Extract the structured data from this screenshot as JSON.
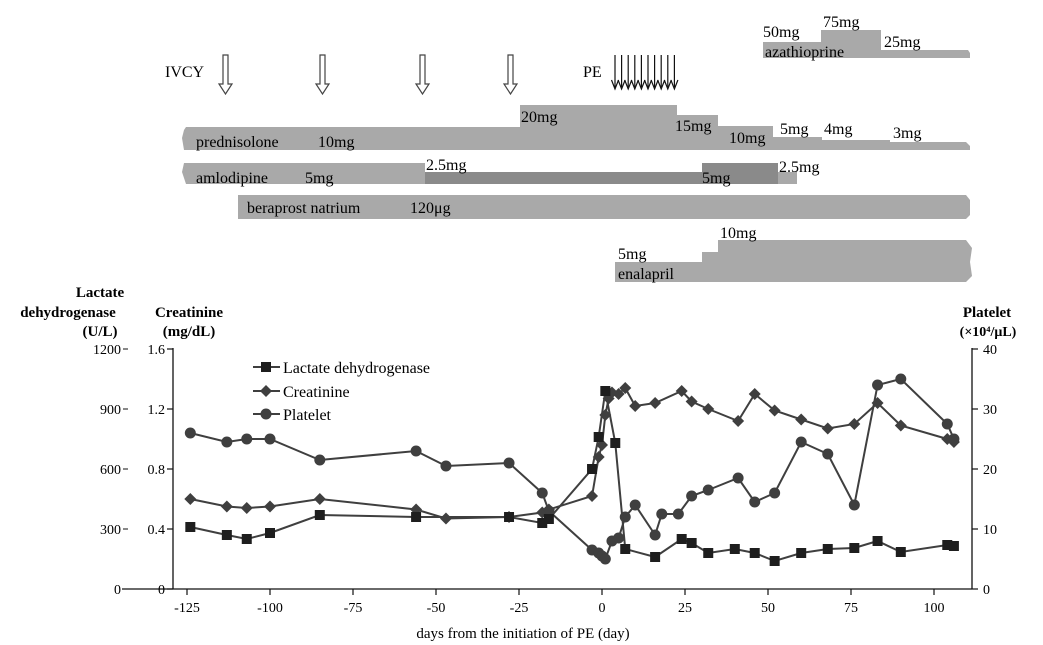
{
  "timeline": {
    "ivcy_label": "IVCY",
    "pe_label": "PE",
    "prednisolone": {
      "name": "prednisolone",
      "doses": [
        "10mg",
        "20mg",
        "15mg",
        "10mg",
        "5mg",
        "4mg",
        "3mg"
      ]
    },
    "amlodipine": {
      "name": "amlodipine",
      "doses": [
        "5mg",
        "2.5mg",
        "5mg",
        "2.5mg"
      ]
    },
    "beraprost": {
      "name": "beraprost natrium",
      "dose": "120μg"
    },
    "enalapril": {
      "name": "enalapril",
      "doses": [
        "5mg",
        "10mg"
      ]
    },
    "azathioprine": {
      "name": "azathioprine",
      "doses": [
        "50mg",
        "75mg",
        "25mg"
      ]
    }
  },
  "axis_titles": {
    "ldh_line1": "Lactate",
    "ldh_line2": "dehydrogenase",
    "ldh_line3": "(U/L)",
    "creat_line1": "Creatinine",
    "creat_line2": "(mg/dL)",
    "plt_line1": "Platelet",
    "plt_line2": "(×10⁴/μL)",
    "xlabel": "days from the initiation of PE (day)"
  },
  "legend": {
    "ldh": "Lactate dehydrogenase",
    "creat": "Creatinine",
    "plt": "Platelet"
  },
  "colors": {
    "series": "#3f3f3f",
    "ldh_marker": "#1e1e1e",
    "bar": "#a9a9a9",
    "bar_dark": "#8a8a8a",
    "axis": "#111111"
  },
  "chart_data": {
    "type": "line",
    "xlabel": "days from the initiation of PE (day)",
    "xlim": [
      -130,
      107
    ],
    "xticks": [
      -125,
      -100,
      -75,
      -50,
      -25,
      0,
      25,
      50,
      75,
      100
    ],
    "ldh_axis": {
      "label": "Lactate dehydrogenase (U/L)",
      "ylim": [
        0,
        1200
      ],
      "ticks": [
        0,
        300,
        600,
        900,
        1200
      ]
    },
    "creatinine_axis": {
      "label": "Creatinine (mg/dL)",
      "ylim": [
        0,
        1.6
      ],
      "ticks": [
        0,
        0.4,
        0.8,
        1.2,
        1.6
      ],
      "tick_labels": [
        "0",
        "0.4",
        "0.8",
        "1.2",
        "1.6"
      ]
    },
    "platelet_axis": {
      "label": "Platelet (×10⁴/μL)",
      "ylim": [
        0,
        40
      ],
      "ticks": [
        0,
        10,
        20,
        30,
        40
      ]
    },
    "legend_position": "top-left",
    "series": [
      {
        "name": "Lactate dehydrogenase",
        "axis": "ldh",
        "marker": "square",
        "x": [
          -124,
          -113,
          -107,
          -100,
          -85,
          -56,
          -28,
          -18,
          -16,
          -3,
          -1,
          1,
          4,
          7,
          16,
          24,
          27,
          32,
          40,
          46,
          52,
          60,
          68,
          76,
          83,
          90,
          104,
          106
        ],
        "y": [
          310,
          270,
          250,
          280,
          370,
          360,
          360,
          330,
          350,
          600,
          760,
          990,
          730,
          200,
          160,
          250,
          230,
          180,
          200,
          180,
          140,
          180,
          200,
          205,
          240,
          185,
          220,
          215
        ]
      },
      {
        "name": "Creatinine",
        "axis": "creatinine",
        "marker": "diamond",
        "x": [
          -124,
          -113,
          -107,
          -100,
          -85,
          -56,
          -47,
          -28,
          -18,
          -16,
          -3,
          -1,
          0,
          1,
          2,
          3,
          5,
          7,
          10,
          16,
          24,
          27,
          32,
          41,
          46,
          52,
          60,
          68,
          76,
          83,
          90,
          104,
          106
        ],
        "y": [
          0.6,
          0.55,
          0.54,
          0.55,
          0.6,
          0.53,
          0.47,
          0.48,
          0.51,
          0.53,
          0.62,
          0.88,
          0.96,
          1.16,
          1.27,
          1.31,
          1.3,
          1.34,
          1.22,
          1.24,
          1.32,
          1.25,
          1.2,
          1.12,
          1.3,
          1.19,
          1.13,
          1.07,
          1.1,
          1.24,
          1.09,
          1.0,
          0.98
        ]
      },
      {
        "name": "Platelet",
        "axis": "platelet",
        "marker": "circle",
        "x": [
          -124,
          -113,
          -107,
          -100,
          -85,
          -56,
          -47,
          -28,
          -18,
          -16,
          -3,
          -1,
          0,
          1,
          3,
          5,
          7,
          10,
          16,
          18,
          23,
          27,
          32,
          41,
          46,
          52,
          60,
          68,
          76,
          83,
          90,
          104,
          106
        ],
        "y": [
          26,
          24.5,
          25,
          25,
          21.5,
          23,
          20.5,
          21,
          16,
          13,
          6.5,
          6,
          5.5,
          5,
          8,
          8.5,
          12,
          14,
          9,
          12.5,
          12.5,
          15.5,
          16.5,
          18.5,
          14.5,
          16,
          24.5,
          22.5,
          14,
          34,
          35,
          27.5,
          25
        ]
      }
    ]
  }
}
